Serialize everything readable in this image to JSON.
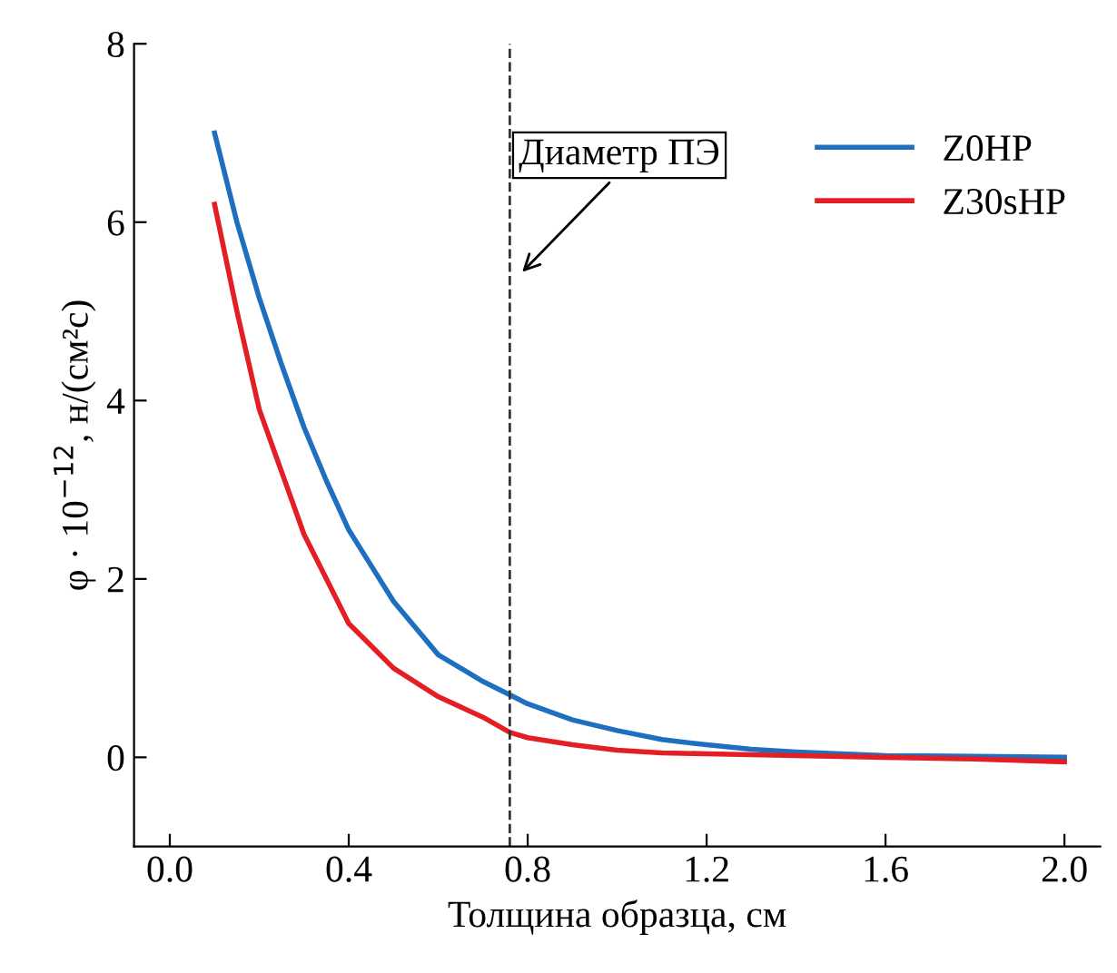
{
  "chart_data": {
    "type": "line",
    "xlabel": "Толщина образца, см",
    "ylabel": "φ · 10$^{−12}$, н/(см²с)",
    "xlim": [
      -0.08,
      2.08
    ],
    "ylim": [
      -1,
      8
    ],
    "xticks": [
      {
        "value": 0,
        "label": "0.0"
      },
      0.4,
      0.8,
      1.2,
      1.6,
      {
        "value": 2,
        "label": "2.0"
      }
    ],
    "yticks": [
      0,
      2,
      4,
      6,
      8
    ],
    "legend": "top right",
    "grid": false,
    "line_style": "solid",
    "marker": "none",
    "ref_lines": [
      {
        "axis": "x",
        "value": 0.76,
        "label": "Диаметр ПЭ",
        "color": "#333333",
        "line_style": "dashed"
      }
    ],
    "series": [
      {
        "name": "Z0HP",
        "color": "#1f6fc0",
        "x": [
          0.1,
          0.15,
          0.2,
          0.25,
          0.3,
          0.35,
          0.4,
          0.45,
          0.5,
          0.6,
          0.7,
          0.76,
          0.8,
          0.9,
          1.0,
          1.1,
          1.2,
          1.3,
          1.4,
          1.6,
          1.8,
          2.0
        ],
        "values": [
          7.0,
          6.0,
          5.15,
          4.4,
          3.7,
          3.1,
          2.55,
          2.15,
          1.75,
          1.15,
          0.85,
          0.7,
          0.6,
          0.42,
          0.3,
          0.2,
          0.14,
          0.09,
          0.06,
          0.02,
          0.01,
          0.0
        ]
      },
      {
        "name": "Z30sHP",
        "color": "#e31e24",
        "x": [
          0.1,
          0.15,
          0.2,
          0.25,
          0.3,
          0.35,
          0.4,
          0.45,
          0.5,
          0.6,
          0.7,
          0.76,
          0.8,
          0.9,
          1.0,
          1.1,
          1.2,
          1.4,
          1.6,
          1.8,
          2.0
        ],
        "values": [
          6.2,
          5.0,
          3.9,
          3.2,
          2.5,
          2.0,
          1.5,
          1.25,
          1.0,
          0.68,
          0.45,
          0.28,
          0.22,
          0.14,
          0.08,
          0.05,
          0.04,
          0.02,
          0.0,
          -0.02,
          -0.05
        ]
      }
    ]
  }
}
